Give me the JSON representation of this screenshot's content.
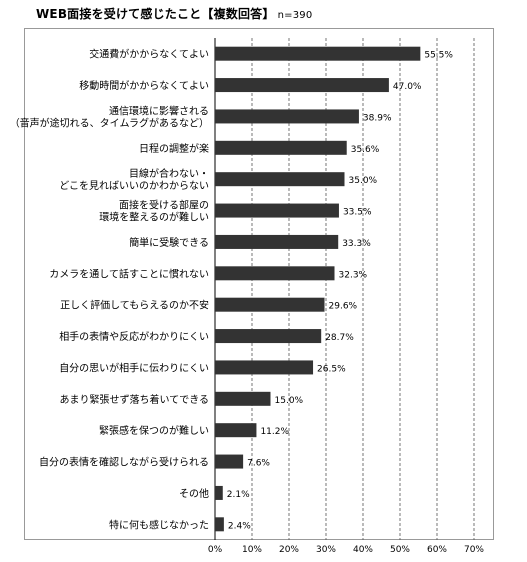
{
  "title": "WEB面接を受けて感じたこと【複数回答】",
  "sample_size": "n=390",
  "colors": {
    "bar": "#333333",
    "grid": "#555555",
    "axis": "#000000"
  },
  "chart_data": {
    "type": "bar",
    "orientation": "horizontal",
    "title": "WEB面接を受けて感じたこと【複数回答】",
    "subtitle": "n=390",
    "xlabel": "",
    "ylabel": "",
    "xlim": [
      0,
      70
    ],
    "x_ticks": [
      "0%",
      "10%",
      "20%",
      "30%",
      "40%",
      "50%",
      "60%",
      "70%"
    ],
    "grid": "vertical dashed",
    "categories": [
      [
        "交通費がかからなくてよい"
      ],
      [
        "移動時間がかからなくてよい"
      ],
      [
        "通信環境に影響される",
        "（音声が途切れる、タイムラグがあるなど）"
      ],
      [
        "日程の調整が楽"
      ],
      [
        "目線が合わない・",
        "どこを見ればいいのかわからない"
      ],
      [
        "面接を受ける部屋の",
        "環境を整えるのが難しい"
      ],
      [
        "簡単に受験できる"
      ],
      [
        "カメラを通して話すことに慣れない"
      ],
      [
        "正しく評価してもらえるのか不安"
      ],
      [
        "相手の表情や反応がわかりにくい"
      ],
      [
        "自分の思いが相手に伝わりにくい"
      ],
      [
        "あまり緊張せず落ち着いてできる"
      ],
      [
        "緊張感を保つのが難しい"
      ],
      [
        "自分の表情を確認しながら受けられる"
      ],
      [
        "その他"
      ],
      [
        "特に何も感じなかった"
      ]
    ],
    "values": [
      55.5,
      47.0,
      38.9,
      35.6,
      35.0,
      33.5,
      33.3,
      32.3,
      29.6,
      28.7,
      26.5,
      15.0,
      11.2,
      7.6,
      2.1,
      2.4
    ],
    "value_labels": [
      "55.5%",
      "47.0%",
      "38.9%",
      "35.6%",
      "35.0%",
      "33.5%",
      "33.3%",
      "32.3%",
      "29.6%",
      "28.7%",
      "26.5%",
      "15.0%",
      "11.2%",
      "7.6%",
      "2.1%",
      "2.4%"
    ]
  }
}
